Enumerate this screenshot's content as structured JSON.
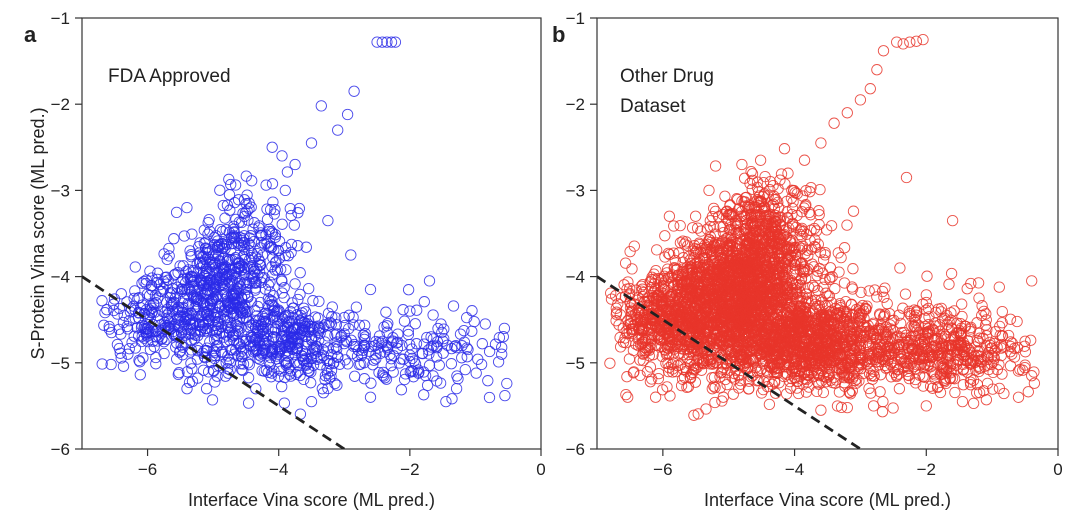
{
  "chart_data": [
    {
      "type": "scatter",
      "panel_label": "a",
      "annotation": [
        "FDA Approved"
      ],
      "xlabel": "Interface Vina score (ML pred.)",
      "ylabel": "S-Protein Vina score (ML pred.)",
      "xlim": [
        -7,
        0
      ],
      "ylim": [
        -6,
        -1
      ],
      "xticks": [
        -6,
        -4,
        -2,
        0
      ],
      "yticks": [
        -6,
        -5,
        -4,
        -3,
        -2,
        -1
      ],
      "xtick_labels": [
        "−6",
        "−4",
        "−2",
        "0"
      ],
      "ytick_labels": [
        "−6",
        "−5",
        "−4",
        "−3",
        "−2",
        "−1"
      ],
      "marker_color": "#2a2ae8",
      "marker": "open-circle",
      "point_count": 1400,
      "reference_line": {
        "style": "dashed",
        "color": "#222222",
        "x": [
          -7,
          -3
        ],
        "y": [
          -4,
          -6
        ]
      },
      "series": [
        {
          "points": [
            [
              -2.5,
              -1.28
            ],
            [
              -2.42,
              -1.28
            ],
            [
              -2.35,
              -1.28
            ],
            [
              -2.28,
              -1.28
            ],
            [
              -2.22,
              -1.28
            ],
            [
              -2.85,
              -1.85
            ],
            [
              -2.95,
              -2.12
            ],
            [
              -3.35,
              -2.02
            ],
            [
              -3.1,
              -2.3
            ],
            [
              -3.5,
              -2.45
            ],
            [
              -3.75,
              -2.7
            ],
            [
              -3.95,
              -2.6
            ],
            [
              -4.1,
              -2.5
            ],
            [
              -3.9,
              -3.0
            ],
            [
              -3.25,
              -3.35
            ],
            [
              -2.9,
              -3.75
            ],
            [
              -2.6,
              -4.15
            ],
            [
              -1.7,
              -4.05
            ],
            [
              -2.0,
              -4.4
            ],
            [
              -1.3,
              -4.8
            ],
            [
              -0.85,
              -4.55
            ],
            [
              -0.6,
              -4.9
            ],
            [
              -0.55,
              -5.38
            ],
            [
              -1.45,
              -5.45
            ],
            [
              -2.6,
              -5.4
            ],
            [
              -3.5,
              -5.45
            ],
            [
              -4.35,
              -5.3
            ],
            [
              -5.1,
              -5.3
            ],
            [
              -6.3,
              -4.9
            ],
            [
              -6.55,
              -4.65
            ],
            [
              -6.4,
              -4.2
            ],
            [
              -5.7,
              -3.8
            ],
            [
              -5.4,
              -3.2
            ],
            [
              -4.75,
              -3.05
            ],
            [
              -4.45,
              -3.15
            ]
          ]
        }
      ]
    },
    {
      "type": "scatter",
      "panel_label": "b",
      "annotation": [
        "Other Drug",
        " Dataset"
      ],
      "xlabel": "Interface Vina score (ML pred.)",
      "ylabel": "",
      "xlim": [
        -7,
        0
      ],
      "ylim": [
        -6,
        -1
      ],
      "xticks": [
        -6,
        -4,
        -2,
        0
      ],
      "yticks": [
        -6,
        -5,
        -4,
        -3,
        -2,
        -1
      ],
      "xtick_labels": [
        "−6",
        "−4",
        "−2",
        "0"
      ],
      "ytick_labels": [
        "−6",
        "−5",
        "−4",
        "−3",
        "−2",
        "−1"
      ],
      "marker_color": "#e8352a",
      "marker": "open-circle",
      "point_count": 4200,
      "reference_line": {
        "style": "dashed",
        "color": "#222222",
        "x": [
          -7,
          -3
        ],
        "y": [
          -4,
          -6
        ]
      },
      "series": [
        {
          "points": [
            [
              -2.45,
              -1.28
            ],
            [
              -2.35,
              -1.3
            ],
            [
              -2.25,
              -1.28
            ],
            [
              -2.15,
              -1.27
            ],
            [
              -2.05,
              -1.25
            ],
            [
              -2.65,
              -1.38
            ],
            [
              -2.75,
              -1.6
            ],
            [
              -2.85,
              -1.82
            ],
            [
              -3.0,
              -1.95
            ],
            [
              -3.2,
              -2.1
            ],
            [
              -3.4,
              -2.22
            ],
            [
              -3.6,
              -2.45
            ],
            [
              -3.85,
              -2.65
            ],
            [
              -4.1,
              -2.8
            ],
            [
              -2.3,
              -2.85
            ],
            [
              -1.6,
              -3.35
            ],
            [
              -2.4,
              -3.9
            ],
            [
              -2.0,
              -4.3
            ],
            [
              -1.2,
              -4.25
            ],
            [
              -0.4,
              -4.05
            ],
            [
              -0.5,
              -4.75
            ],
            [
              -0.4,
              -5.15
            ],
            [
              -0.6,
              -5.4
            ],
            [
              -1.45,
              -5.45
            ],
            [
              -2.0,
              -5.5
            ],
            [
              -2.8,
              -5.5
            ],
            [
              -3.6,
              -5.55
            ],
            [
              -4.5,
              -5.35
            ],
            [
              -5.25,
              -5.3
            ],
            [
              -6.3,
              -4.9
            ],
            [
              -6.6,
              -4.6
            ],
            [
              -6.5,
              -4.2
            ],
            [
              -5.9,
              -3.3
            ],
            [
              -5.3,
              -3.0
            ],
            [
              -4.8,
              -2.7
            ]
          ]
        }
      ]
    }
  ]
}
